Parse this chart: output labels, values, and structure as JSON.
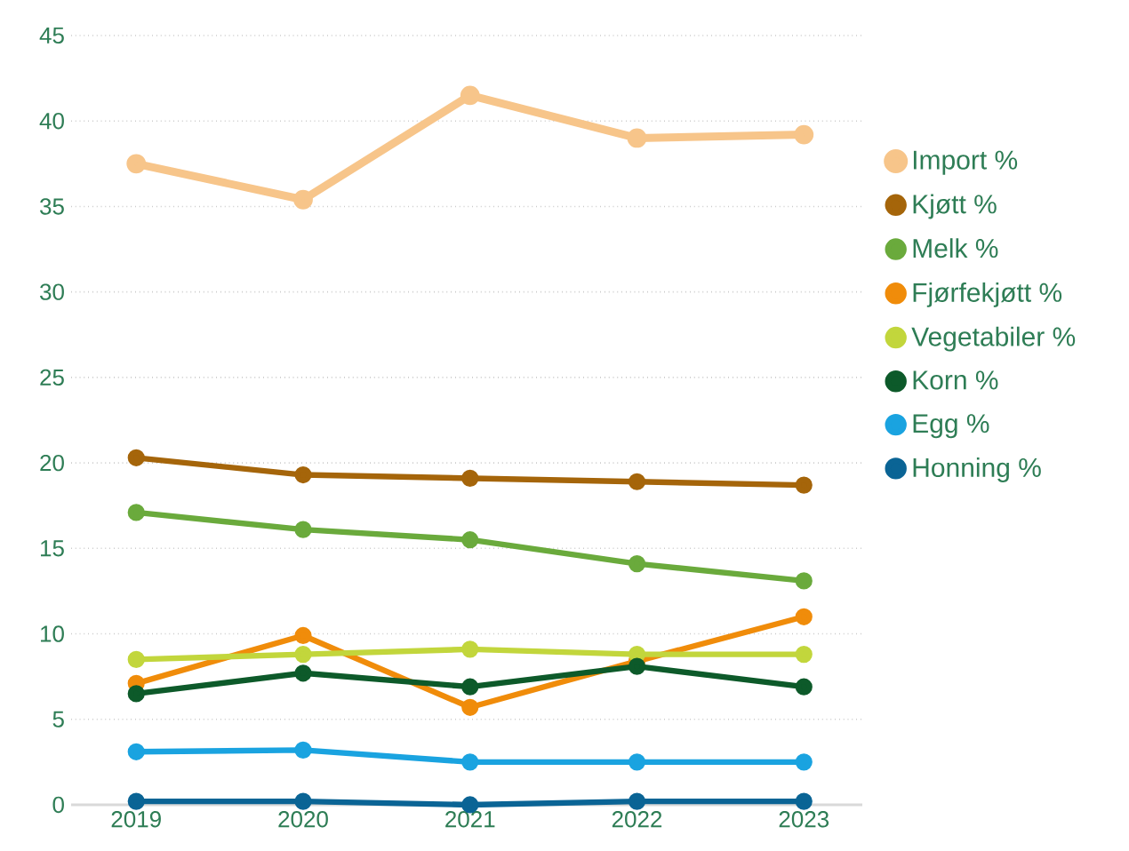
{
  "chart_data": {
    "type": "line",
    "categories": [
      "2019",
      "2020",
      "2021",
      "2022",
      "2023"
    ],
    "ylim": [
      0,
      45
    ],
    "yticks": [
      0,
      5,
      10,
      15,
      20,
      25,
      30,
      35,
      40,
      45
    ],
    "grid": "y",
    "legend": "right",
    "marker": "circle",
    "line_style": "solid",
    "series": [
      {
        "name": "Import %",
        "color": "#f7c58a",
        "values": [
          37.5,
          35.4,
          41.5,
          39.0,
          39.2
        ]
      },
      {
        "name": "Kjøtt %",
        "color": "#a5650a",
        "values": [
          20.3,
          19.3,
          19.1,
          18.9,
          18.7
        ]
      },
      {
        "name": "Melk  %",
        "color": "#6aaa3c",
        "values": [
          17.1,
          16.1,
          15.5,
          14.1,
          13.1
        ]
      },
      {
        "name": "Fjørfekjøtt %",
        "color": "#f08c0a",
        "values": [
          7.1,
          9.9,
          5.7,
          8.4,
          11.0
        ]
      },
      {
        "name": "Vegetabiler %",
        "color": "#c2d63c",
        "values": [
          8.5,
          8.8,
          9.1,
          8.8,
          8.8
        ]
      },
      {
        "name": "Korn %",
        "color": "#0d5a2a",
        "values": [
          6.5,
          7.7,
          6.9,
          8.1,
          6.9
        ]
      },
      {
        "name": "Egg %",
        "color": "#1aa3e0",
        "values": [
          3.1,
          3.2,
          2.5,
          2.5,
          2.5
        ]
      },
      {
        "name": "Honning %",
        "color": "#0a6495",
        "values": [
          0.2,
          0.2,
          0.0,
          0.2,
          0.2
        ]
      }
    ]
  }
}
